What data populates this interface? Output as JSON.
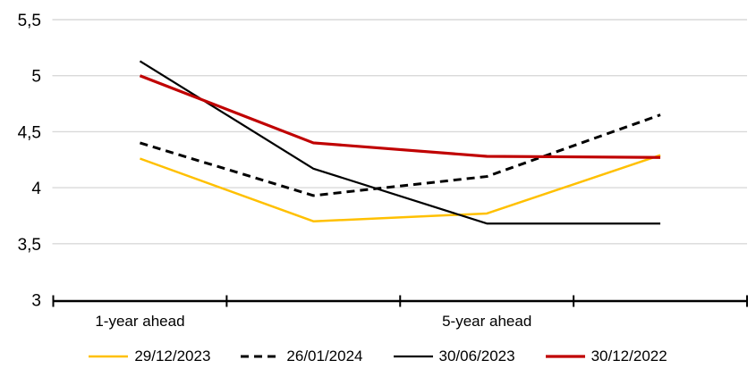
{
  "chart_data": {
    "type": "line",
    "title": "",
    "categories": [
      "1-year ahead",
      "",
      "5-year ahead",
      ""
    ],
    "series": [
      {
        "name": "29/12/2023",
        "color": "#FFC000",
        "line_style": "solid",
        "line_width": 2.5,
        "values": [
          4.26,
          3.7,
          3.77,
          4.29
        ]
      },
      {
        "name": "26/01/2024",
        "color": "#000000",
        "line_style": "dashed",
        "line_width": 3.0,
        "values": [
          4.4,
          3.93,
          4.1,
          4.65
        ]
      },
      {
        "name": "30/06/2023",
        "color": "#000000",
        "line_style": "solid",
        "line_width": 2.2,
        "values": [
          5.13,
          4.17,
          3.68,
          3.68
        ]
      },
      {
        "name": "30/12/2022",
        "color": "#C00000",
        "line_style": "solid",
        "line_width": 3.2,
        "values": [
          5.0,
          4.4,
          4.28,
          4.27
        ]
      }
    ],
    "ylim": [
      3,
      5.5
    ],
    "yticks": [
      3,
      3.5,
      4,
      4.5,
      5,
      5.5
    ],
    "ytick_labels": [
      "3",
      "3,5",
      "4",
      "4,5",
      "5",
      "5,5"
    ],
    "decimal_separator": ",",
    "grid": true,
    "legend_position": "bottom",
    "colors": {
      "gridline": "#D9D9D9",
      "axis": "#000000",
      "text": "#000000",
      "background": "#FFFFFF"
    }
  }
}
